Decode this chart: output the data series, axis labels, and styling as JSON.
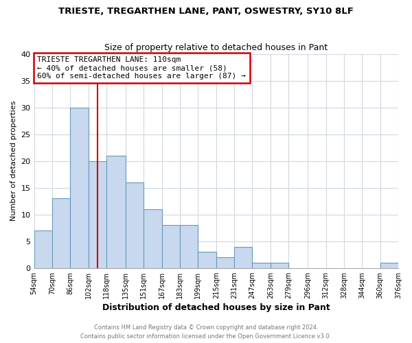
{
  "title": "TRIESTE, TREGARTHEN LANE, PANT, OSWESTRY, SY10 8LF",
  "subtitle": "Size of property relative to detached houses in Pant",
  "xlabel": "Distribution of detached houses by size in Pant",
  "ylabel": "Number of detached properties",
  "bar_color": "#c8d8ee",
  "bar_edge_color": "#6699bb",
  "bin_edges": [
    54,
    70,
    86,
    102,
    118,
    135,
    151,
    167,
    183,
    199,
    215,
    231,
    247,
    263,
    279,
    296,
    312,
    328,
    344,
    360,
    376
  ],
  "bin_labels": [
    "54sqm",
    "70sqm",
    "86sqm",
    "102sqm",
    "118sqm",
    "135sqm",
    "151sqm",
    "167sqm",
    "183sqm",
    "199sqm",
    "215sqm",
    "231sqm",
    "247sqm",
    "263sqm",
    "279sqm",
    "296sqm",
    "312sqm",
    "328sqm",
    "344sqm",
    "360sqm",
    "376sqm"
  ],
  "counts": [
    7,
    13,
    30,
    20,
    21,
    16,
    11,
    8,
    8,
    3,
    2,
    4,
    1,
    1,
    0,
    0,
    0,
    0,
    0,
    1
  ],
  "ylim": [
    0,
    40
  ],
  "yticks": [
    0,
    5,
    10,
    15,
    20,
    25,
    30,
    35,
    40
  ],
  "vline_x": 110,
  "vline_color": "#cc0000",
  "annotation_text": "TRIESTE TREGARTHEN LANE: 110sqm\n← 40% of detached houses are smaller (58)\n60% of semi-detached houses are larger (87) →",
  "annotation_box_edge": "#cc0000",
  "footer1": "Contains HM Land Registry data © Crown copyright and database right 2024.",
  "footer2": "Contains public sector information licensed under the Open Government Licence v3.0.",
  "background_color": "#ffffff",
  "plot_bg_color": "#ffffff",
  "grid_color": "#d0d8e0"
}
